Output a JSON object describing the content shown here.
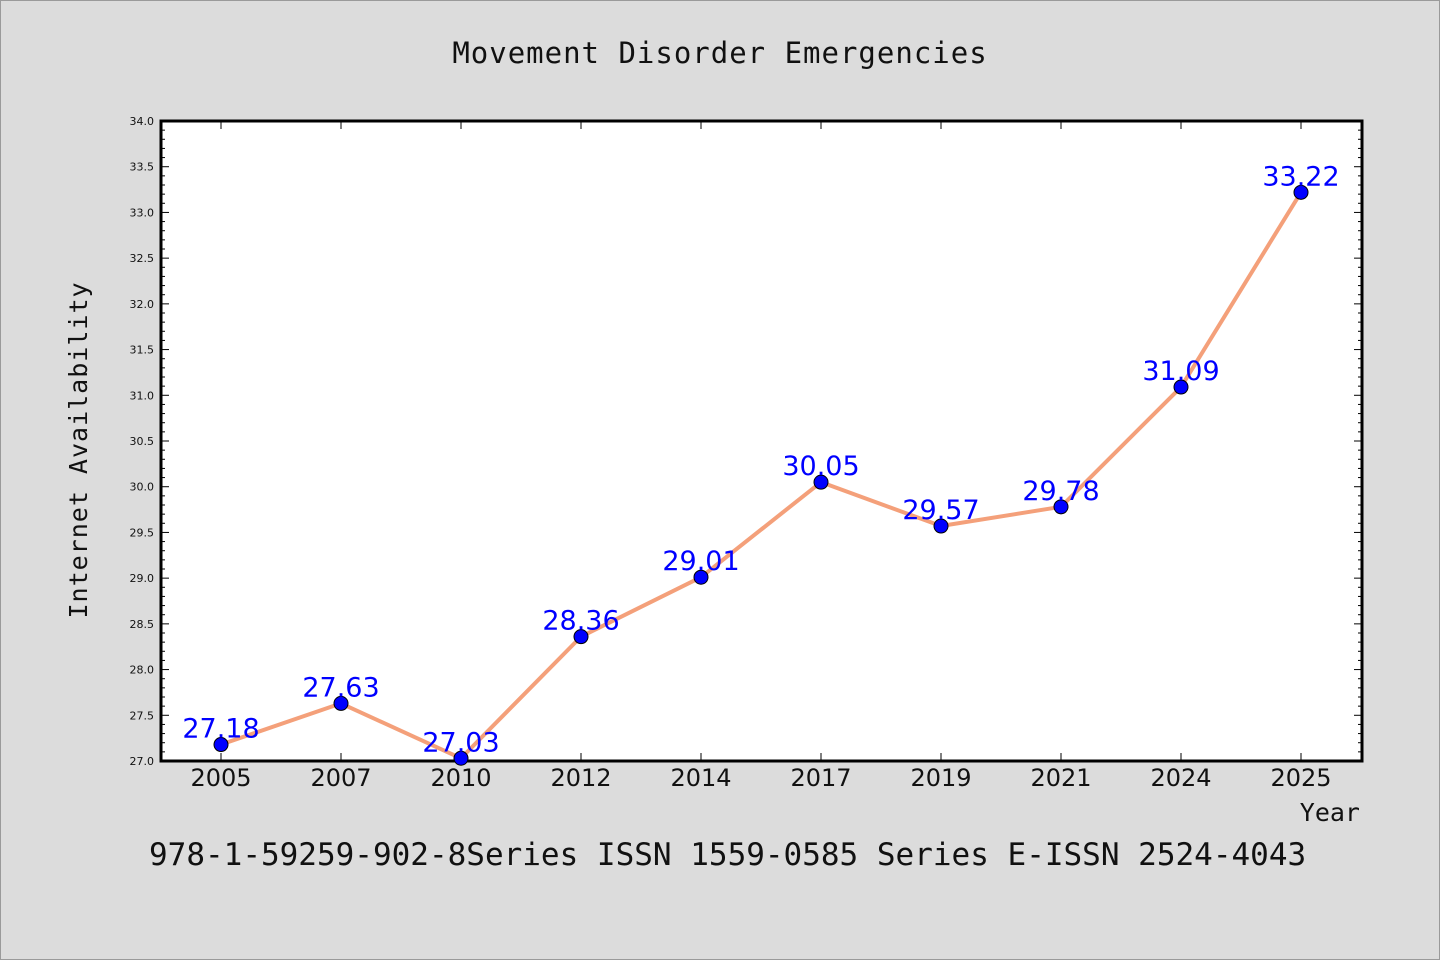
{
  "chart_data": {
    "type": "line",
    "title": "Movement Disorder Emergencies",
    "xlabel": "Year",
    "ylabel": "Internet Availability",
    "categories": [
      "2005",
      "2007",
      "2010",
      "2012",
      "2014",
      "2017",
      "2019",
      "2021",
      "2024",
      "2025"
    ],
    "series": [
      {
        "values": [
          27.18,
          27.63,
          27.03,
          28.36,
          29.01,
          30.05,
          29.57,
          29.78,
          31.09,
          33.22
        ],
        "line_color": "#f4a07a",
        "marker_color": "#0000ff"
      }
    ],
    "data_labels": [
      "27.18",
      "27.63",
      "27.03",
      "28.36",
      "29.01",
      "30.05",
      "29.57",
      "29.78",
      "31.09",
      "33.22"
    ],
    "yticks": [
      "27.0",
      "27.5",
      "28.0",
      "28.5",
      "29.0",
      "29.5",
      "30.0",
      "30.5",
      "31.0",
      "31.5",
      "32.0",
      "32.5",
      "33.0",
      "33.5",
      "34.0"
    ],
    "ylim": [
      27.0,
      34.0
    ],
    "grid": false,
    "legend": "none"
  },
  "footer": {
    "text": "978-1-59259-902-8Series ISSN 1559-0585 Series E-ISSN 2524-4043"
  }
}
